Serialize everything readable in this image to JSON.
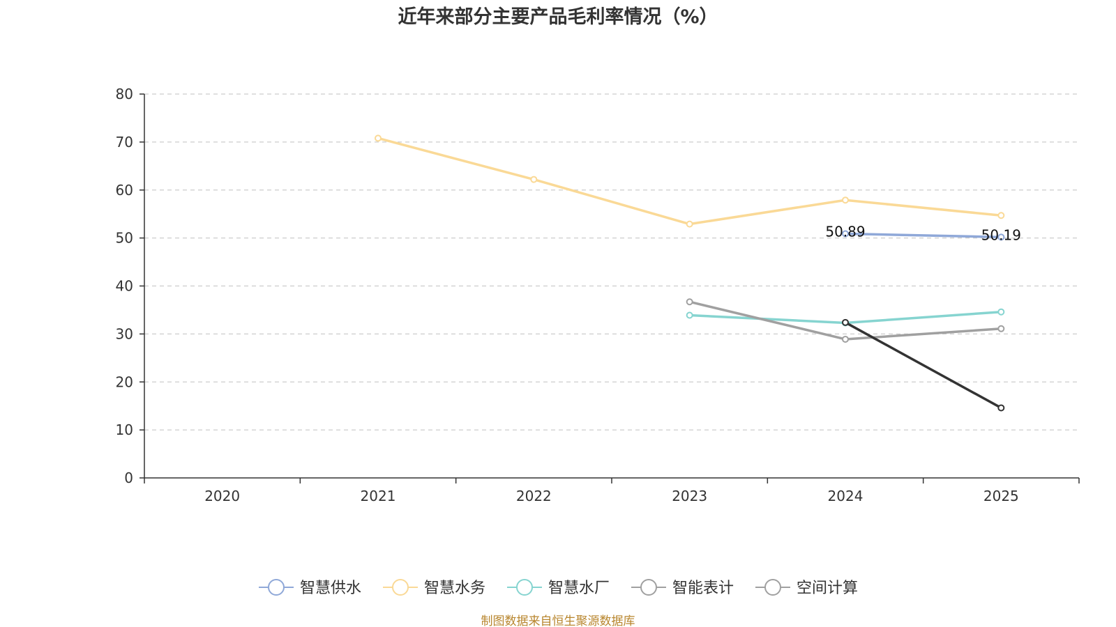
{
  "chart_data": {
    "type": "line",
    "title": "近年来部分主要产品毛利率情况（%）",
    "source": "制图数据来自恒生聚源数据库",
    "categories": [
      "2020",
      "2021",
      "2022",
      "2023",
      "2024",
      "2025"
    ],
    "ylim": [
      0,
      80
    ],
    "yticks": [
      0,
      10,
      20,
      30,
      40,
      50,
      60,
      70,
      80
    ],
    "legend_position": "bottom",
    "series": [
      {
        "name": "智慧供水",
        "color": "#8fa8d8",
        "values": [
          null,
          null,
          null,
          null,
          50.89,
          50.19
        ],
        "labels": [
          null,
          null,
          null,
          null,
          "50.89",
          "50.19"
        ]
      },
      {
        "name": "智慧水务",
        "color": "#fad996",
        "values": [
          null,
          70.8,
          62.2,
          52.9,
          57.9,
          54.7
        ]
      },
      {
        "name": "智慧水厂",
        "color": "#86d4d0",
        "values": [
          null,
          null,
          null,
          33.9,
          32.3,
          34.6
        ]
      },
      {
        "name": "智能表计",
        "color": "#a0a0a0",
        "values": [
          null,
          null,
          null,
          36.7,
          28.9,
          31.1
        ]
      },
      {
        "name": "空间计算",
        "color": "#333333",
        "legend_color": "#a0a0a0",
        "values": [
          null,
          null,
          null,
          null,
          32.4,
          14.6
        ]
      }
    ]
  }
}
